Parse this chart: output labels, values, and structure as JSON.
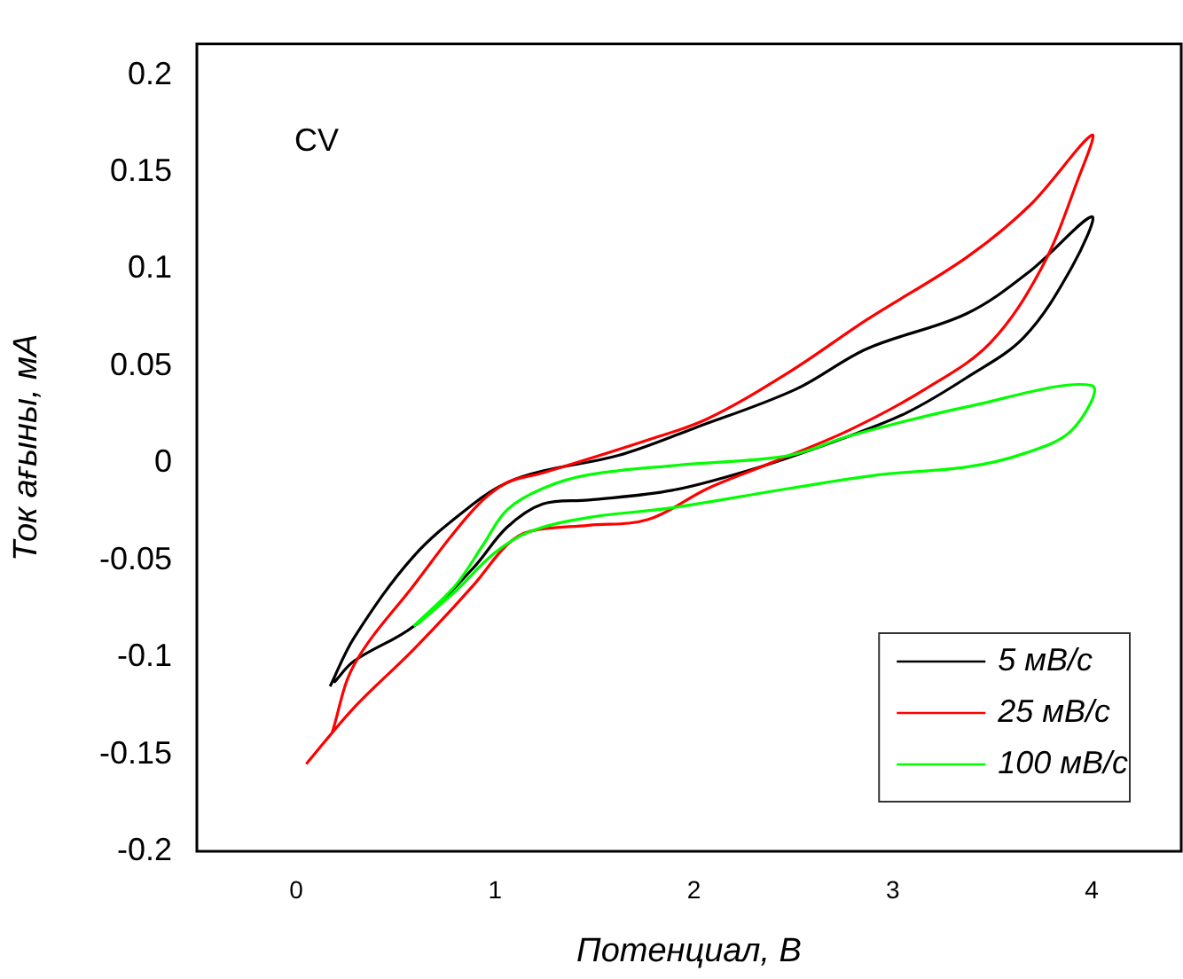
{
  "chart_data": {
    "type": "line",
    "xlabel": "Потенциал, В",
    "ylabel": "Ток ағыны, мА",
    "annotations": [
      "CV"
    ],
    "xlim": [
      -0.5,
      4.45
    ],
    "xticks": [
      0,
      1,
      2,
      3,
      4
    ],
    "ylim": [
      -0.2,
      0.216
    ],
    "yticks": [
      -0.2,
      -0.15,
      -0.1,
      -0.05,
      0,
      0.05,
      0.1,
      0.15,
      0.2
    ],
    "grid": false,
    "legend": "bottom right",
    "marker": "none",
    "line_style": "solid",
    "series": [
      {
        "name": "5 мВ/с",
        "color": "#000000",
        "x": [
          0.17,
          0.29,
          0.59,
          0.89,
          1.06,
          1.24,
          1.62,
          2.0,
          2.51,
          2.87,
          3.37,
          3.69,
          4.0,
          3.9,
          3.66,
          3.37,
          3.07,
          2.78,
          2.33,
          1.89,
          1.47,
          1.24,
          1.06,
          0.89,
          0.59,
          0.29,
          0.19
        ],
        "values": [
          -0.115,
          -0.09,
          -0.048,
          -0.021,
          -0.01,
          -0.004,
          0.004,
          0.018,
          0.038,
          0.059,
          0.077,
          0.099,
          0.127,
          0.101,
          0.065,
          0.044,
          0.026,
          0.014,
          -0.002,
          -0.014,
          -0.019,
          -0.021,
          -0.033,
          -0.054,
          -0.084,
          -0.102,
          -0.113
        ]
      },
      {
        "name": "25 мВ/с",
        "color": "#ff0000",
        "x": [
          0.18,
          0.29,
          0.59,
          0.89,
          1.06,
          1.24,
          1.77,
          2.07,
          2.48,
          2.87,
          3.37,
          3.69,
          4.0,
          3.93,
          3.75,
          3.49,
          3.16,
          2.78,
          2.36,
          2.07,
          1.77,
          1.47,
          1.18,
          1.06,
          0.89,
          0.59,
          0.29,
          0.05
        ],
        "values": [
          -0.139,
          -0.104,
          -0.063,
          -0.024,
          -0.01,
          -0.005,
          0.012,
          0.023,
          0.047,
          0.074,
          0.106,
          0.133,
          0.169,
          0.146,
          0.101,
          0.062,
          0.038,
          0.017,
          -0.001,
          -0.013,
          -0.029,
          -0.032,
          -0.035,
          -0.042,
          -0.063,
          -0.096,
          -0.126,
          -0.155
        ]
      },
      {
        "name": "100 мВ/с",
        "color": "#00ff00",
        "x": [
          0.59,
          0.8,
          0.94,
          1.06,
          1.24,
          1.47,
          1.92,
          2.48,
          2.78,
          3.37,
          4.0,
          3.9,
          3.66,
          3.37,
          2.93,
          2.48,
          1.89,
          1.47,
          1.18,
          1.0,
          0.8,
          0.61
        ],
        "values": [
          -0.084,
          -0.063,
          -0.042,
          -0.024,
          -0.013,
          -0.006,
          -0.001,
          0.004,
          0.014,
          0.029,
          0.04,
          0.017,
          0.005,
          -0.002,
          -0.006,
          -0.013,
          -0.023,
          -0.028,
          -0.035,
          -0.046,
          -0.066,
          -0.083
        ]
      }
    ]
  }
}
